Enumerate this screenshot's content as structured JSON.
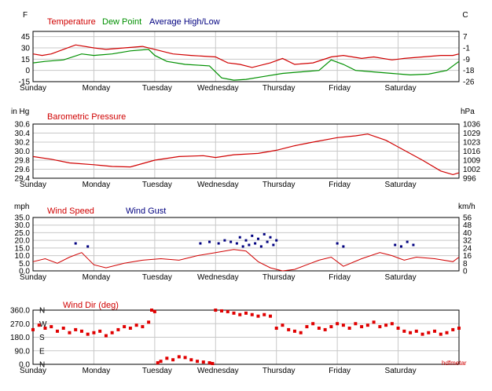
{
  "chart_data": [
    {
      "type": "line",
      "id": "temp",
      "left_unit": "F",
      "right_unit": "C",
      "legend": [
        {
          "name": "Temperature",
          "color": "#d00000"
        },
        {
          "name": "Dew Point",
          "color": "#009000"
        },
        {
          "name": "Average High/Low",
          "color": "#000080"
        }
      ],
      "ylim": [
        -15,
        52
      ],
      "left_ticks": [
        "45",
        "30",
        "15",
        "0",
        "-15"
      ],
      "left_tick_values": [
        45,
        30,
        15,
        0,
        -15
      ],
      "right_ticks": [
        "7",
        "-1",
        "-9",
        "-18",
        "-26"
      ],
      "right_tick_values": [
        45,
        30,
        15,
        0,
        -15
      ],
      "x_day_labels": [
        "Sunday",
        "Monday",
        "Tuesday",
        "Wednesday",
        "Thursday",
        "Friday",
        "Saturday"
      ],
      "series": [
        {
          "name": "Temperature",
          "color": "#d00000",
          "x": [
            0,
            0.15,
            0.3,
            0.5,
            0.7,
            1.0,
            1.2,
            1.5,
            1.8,
            2.0,
            2.3,
            2.6,
            3.0,
            3.2,
            3.4,
            3.6,
            3.9,
            4.1,
            4.3,
            4.6,
            4.9,
            5.1,
            5.4,
            5.6,
            5.9,
            6.1,
            6.4,
            6.7,
            6.9,
            7.0
          ],
          "values": [
            22,
            20,
            22,
            28,
            34,
            30,
            28,
            30,
            32,
            28,
            22,
            20,
            18,
            10,
            8,
            4,
            10,
            16,
            8,
            10,
            18,
            20,
            16,
            18,
            14,
            16,
            18,
            20,
            20,
            22
          ]
        },
        {
          "name": "Dew Point",
          "color": "#009000",
          "x": [
            0,
            0.2,
            0.5,
            0.8,
            1.0,
            1.3,
            1.6,
            1.9,
            2.0,
            2.2,
            2.5,
            2.9,
            3.1,
            3.3,
            3.5,
            3.8,
            4.1,
            4.4,
            4.7,
            4.9,
            5.1,
            5.3,
            5.6,
            5.9,
            6.2,
            6.5,
            6.8,
            7.0
          ],
          "values": [
            10,
            12,
            14,
            22,
            20,
            22,
            26,
            28,
            20,
            12,
            8,
            6,
            -10,
            -13,
            -12,
            -8,
            -4,
            -2,
            0,
            14,
            8,
            0,
            -2,
            -4,
            -6,
            -5,
            0,
            12
          ]
        },
        {
          "name": "Average High/Low",
          "color": "#000080",
          "x": [],
          "values": []
        }
      ]
    },
    {
      "type": "line",
      "id": "pressure",
      "left_unit": "in Hg",
      "right_unit": "hPa",
      "title": "Barometric Pressure",
      "ylim": [
        29.4,
        30.6
      ],
      "left_ticks": [
        "30.6",
        "30.4",
        "30.2",
        "30.0",
        "29.8",
        "29.6",
        "29.4"
      ],
      "left_tick_values": [
        30.6,
        30.4,
        30.2,
        30.0,
        29.8,
        29.6,
        29.4
      ],
      "right_ticks": [
        "1036",
        "1029",
        "1023",
        "1016",
        "1009",
        "1002",
        "996"
      ],
      "right_tick_values": [
        30.6,
        30.4,
        30.2,
        30.0,
        29.8,
        29.6,
        29.4
      ],
      "x_day_labels": [
        "Sunday",
        "Monday",
        "Tuesday",
        "Wednesday",
        "Thursday",
        "Friday",
        "Saturday"
      ],
      "series": [
        {
          "name": "Barometric Pressure",
          "color": "#d00000",
          "x": [
            0,
            0.3,
            0.6,
            1.0,
            1.3,
            1.6,
            2.0,
            2.4,
            2.8,
            3.0,
            3.3,
            3.7,
            4.0,
            4.3,
            4.6,
            5.0,
            5.3,
            5.5,
            5.8,
            6.1,
            6.4,
            6.7,
            6.9,
            7.0
          ],
          "values": [
            29.88,
            29.82,
            29.74,
            29.7,
            29.66,
            29.65,
            29.8,
            29.88,
            29.9,
            29.86,
            29.92,
            29.95,
            30.02,
            30.12,
            30.2,
            30.3,
            30.34,
            30.38,
            30.24,
            30.02,
            29.8,
            29.56,
            29.48,
            29.52
          ]
        }
      ]
    },
    {
      "type": "scatter",
      "id": "wind",
      "left_unit": "mph",
      "right_unit": "km/h",
      "legend": [
        {
          "name": "Wind Speed",
          "color": "#d00000"
        },
        {
          "name": "Wind Gust",
          "color": "#000080"
        }
      ],
      "ylim": [
        0,
        35
      ],
      "left_ticks": [
        "35.0",
        "30.0",
        "25.0",
        "20.0",
        "15.0",
        "10.0",
        "5.0",
        "0.0"
      ],
      "left_tick_values": [
        35,
        30,
        25,
        20,
        15,
        10,
        5,
        0
      ],
      "right_ticks": [
        "56",
        "48",
        "40",
        "32",
        "24",
        "16",
        "8",
        "0"
      ],
      "right_tick_values": [
        35,
        30,
        25,
        20,
        15,
        10,
        5,
        0
      ],
      "x_day_labels": [
        "Sunday",
        "Monday",
        "Tuesday",
        "Wednesday",
        "Thursday",
        "Friday",
        "Saturday"
      ],
      "series": [
        {
          "name": "Wind Speed",
          "color": "#d00000",
          "x": [
            0,
            0.2,
            0.4,
            0.6,
            0.8,
            1.0,
            1.2,
            1.5,
            1.8,
            2.1,
            2.4,
            2.7,
            3.0,
            3.3,
            3.5,
            3.7,
            3.9,
            4.1,
            4.3,
            4.5,
            4.7,
            4.9,
            5.1,
            5.4,
            5.7,
            5.9,
            6.1,
            6.3,
            6.6,
            6.9,
            7.0
          ],
          "values": [
            6,
            8,
            5,
            9,
            12,
            4,
            2,
            5,
            7,
            8,
            7,
            10,
            12,
            14,
            13,
            6,
            2,
            0,
            1,
            4,
            7,
            9,
            3,
            8,
            12,
            10,
            7,
            9,
            8,
            6,
            9
          ]
        },
        {
          "name": "Wind Gust",
          "color": "#000080",
          "x": [
            0.7,
            0.9,
            2.75,
            2.9,
            3.05,
            3.15,
            3.25,
            3.35,
            3.4,
            3.45,
            3.5,
            3.55,
            3.6,
            3.65,
            3.7,
            3.75,
            3.8,
            3.85,
            3.9,
            3.95,
            4.0,
            5.0,
            5.1,
            5.95,
            6.05,
            6.15,
            6.25
          ],
          "values": [
            18,
            16,
            18,
            19,
            18,
            20,
            19,
            18,
            22,
            16,
            20,
            17,
            23,
            18,
            21,
            16,
            24,
            19,
            22,
            17,
            20,
            18,
            16,
            17,
            16,
            19,
            17
          ]
        }
      ]
    },
    {
      "type": "scatter",
      "id": "winddir",
      "title": "Wind Dir (deg)",
      "ylim": [
        0,
        360
      ],
      "left_ticks": [
        "360.0",
        "270.0",
        "180.0",
        "90.0",
        "0.0"
      ],
      "left_tick_values": [
        360,
        270,
        180,
        90,
        0
      ],
      "compass_labels": [
        "N",
        "W",
        "S",
        "E",
        "N"
      ],
      "x_day_labels": [
        "Sunday",
        "Monday",
        "Tuesday",
        "Wednesday",
        "Thursday",
        "Friday",
        "Saturday"
      ],
      "series": [
        {
          "name": "Wind Dir",
          "color": "#e00000",
          "x": [
            0,
            0.1,
            0.2,
            0.3,
            0.4,
            0.5,
            0.6,
            0.7,
            0.8,
            0.9,
            1.0,
            1.1,
            1.2,
            1.3,
            1.4,
            1.5,
            1.6,
            1.7,
            1.8,
            1.9,
            1.95,
            2.0,
            2.05,
            2.1,
            2.2,
            2.3,
            2.4,
            2.5,
            2.6,
            2.7,
            2.8,
            2.9,
            2.95,
            3.0,
            3.1,
            3.2,
            3.3,
            3.4,
            3.5,
            3.6,
            3.7,
            3.8,
            3.9,
            4.0,
            4.1,
            4.2,
            4.3,
            4.4,
            4.5,
            4.6,
            4.7,
            4.8,
            4.9,
            5.0,
            5.1,
            5.2,
            5.3,
            5.4,
            5.5,
            5.6,
            5.7,
            5.8,
            5.9,
            6.0,
            6.1,
            6.2,
            6.3,
            6.4,
            6.5,
            6.6,
            6.7,
            6.8,
            6.9,
            7.0
          ],
          "values": [
            230,
            260,
            240,
            250,
            220,
            240,
            210,
            230,
            220,
            200,
            210,
            220,
            190,
            210,
            230,
            250,
            240,
            260,
            250,
            280,
            360,
            350,
            10,
            20,
            40,
            30,
            50,
            45,
            30,
            20,
            15,
            10,
            5,
            360,
            355,
            350,
            340,
            330,
            340,
            330,
            320,
            330,
            320,
            240,
            260,
            230,
            220,
            210,
            250,
            270,
            240,
            230,
            250,
            270,
            260,
            240,
            270,
            250,
            260,
            280,
            250,
            260,
            270,
            240,
            220,
            210,
            220,
            200,
            210,
            220,
            200,
            210,
            230,
            240
          ]
        }
      ]
    }
  ],
  "watermark": "hdfmetar"
}
